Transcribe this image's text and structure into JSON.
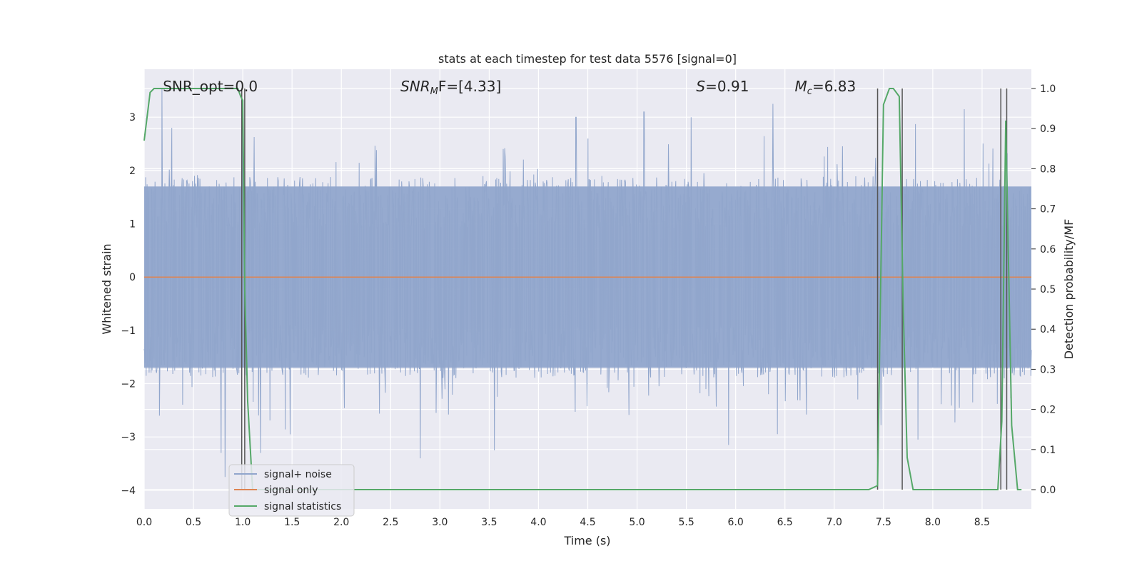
{
  "chart_data": {
    "type": "line",
    "title": "stats at each timestep for test data 5576 [signal=0]",
    "xlabel": "Time (s)",
    "ylabel": "Whitened strain",
    "ylabel_right": "Detection probability/MF",
    "xlim": [
      0.0,
      9.0
    ],
    "ylim": [
      -4.35,
      3.9
    ],
    "ylim_right": [
      -0.048,
      1.048
    ],
    "x_ticks": [
      0.0,
      0.5,
      1.0,
      1.5,
      2.0,
      2.5,
      3.0,
      3.5,
      4.0,
      4.5,
      5.0,
      5.5,
      6.0,
      6.5,
      7.0,
      7.5,
      8.0,
      8.5
    ],
    "x_tick_labels": [
      "0.0",
      "0.5",
      "1.0",
      "1.5",
      "2.0",
      "2.5",
      "3.0",
      "3.5",
      "4.0",
      "4.5",
      "5.0",
      "5.5",
      "6.0",
      "6.5",
      "7.0",
      "7.5",
      "8.0",
      "8.5"
    ],
    "y_ticks": [
      -4,
      -3,
      -2,
      -1,
      0,
      1,
      2,
      3
    ],
    "y_tick_labels": [
      "−4",
      "−3",
      "−2",
      "−1",
      "0",
      "1",
      "2",
      "3"
    ],
    "y_right_ticks": [
      0.0,
      0.1,
      0.2,
      0.3,
      0.4,
      0.5,
      0.6,
      0.7,
      0.8,
      0.9,
      1.0
    ],
    "y_right_tick_labels": [
      "0.0",
      "0.1",
      "0.2",
      "0.3",
      "0.4",
      "0.5",
      "0.6",
      "0.7",
      "0.8",
      "0.9",
      "1.0"
    ],
    "grid": true,
    "legend_position": "lower-left",
    "annotations": [
      {
        "id": "snr-opt",
        "text": "SNR_opt=0.0",
        "x": 0.19,
        "y_frac": 0.963
      },
      {
        "id": "snr-mf",
        "text": "SNR",
        "sub": "M",
        "rest": "F=[4.33]",
        "italic": true,
        "x": 2.6,
        "y_frac": 0.963
      },
      {
        "id": "s-val",
        "text": "S",
        "rest": "=0.91",
        "italic": true,
        "x": 5.6,
        "y_frac": 0.963
      },
      {
        "id": "mc-val",
        "text": "M",
        "sub": "c",
        "rest": "=6.83",
        "italic": true,
        "x": 6.6,
        "y_frac": 0.963
      }
    ],
    "series": [
      {
        "name": "signal+ noise",
        "color": "#91a6cc",
        "kind": "noise",
        "t_start": 0.0,
        "t_end": 9.0,
        "n_samples": 1800,
        "band_low": -1.7,
        "band_high": 1.7,
        "peaks": [
          {
            "x": 0.18,
            "y": 3.55
          },
          {
            "x": 0.28,
            "y": 2.8
          },
          {
            "x": 0.78,
            "y": -3.3
          },
          {
            "x": 0.82,
            "y": -3.75
          },
          {
            "x": 1.0,
            "y": 2.8
          },
          {
            "x": 1.18,
            "y": -3.3
          },
          {
            "x": 1.48,
            "y": -2.95
          },
          {
            "x": 2.8,
            "y": -3.4
          },
          {
            "x": 3.55,
            "y": -3.25
          },
          {
            "x": 4.38,
            "y": 3.0
          },
          {
            "x": 5.07,
            "y": 3.1
          },
          {
            "x": 5.55,
            "y": 3.0
          },
          {
            "x": 5.93,
            "y": -3.15
          },
          {
            "x": 6.38,
            "y": 3.25
          },
          {
            "x": 7.85,
            "y": -3.05
          },
          {
            "x": 8.32,
            "y": 3.15
          }
        ]
      },
      {
        "name": "signal only",
        "color": "#dd8452",
        "kind": "line",
        "x": [
          0.0,
          9.0
        ],
        "y": [
          0.0,
          0.0
        ]
      },
      {
        "name": "signal statistics",
        "color": "#55a868",
        "kind": "line",
        "axis": "right",
        "x": [
          0.0,
          0.06,
          0.1,
          0.95,
          0.98,
          1.0,
          1.02,
          1.05,
          1.1,
          1.2,
          7.35,
          7.44,
          7.5,
          7.56,
          7.6,
          7.66,
          7.7,
          7.74,
          7.8,
          7.9,
          8.2,
          8.66,
          8.7,
          8.74,
          8.8,
          8.86,
          8.9
        ],
        "y": [
          0.87,
          0.99,
          1.0,
          1.0,
          0.98,
          0.97,
          0.5,
          0.22,
          0.0,
          0.0,
          0.0,
          0.01,
          0.96,
          1.0,
          1.0,
          0.98,
          0.45,
          0.08,
          0.0,
          0.0,
          0.0,
          0.0,
          0.17,
          0.92,
          0.16,
          0.0,
          0.0
        ]
      }
    ],
    "vlines": [
      0.99,
      1.02,
      7.44,
      7.69,
      8.69,
      8.75
    ],
    "vline_color": "#555555",
    "legend": [
      {
        "label": "signal+ noise",
        "color": "#91a6cc"
      },
      {
        "label": "signal only",
        "color": "#dd8452"
      },
      {
        "label": "signal statistics",
        "color": "#55a868"
      }
    ]
  }
}
